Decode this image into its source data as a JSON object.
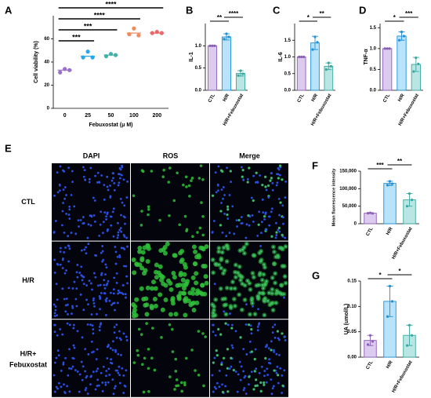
{
  "chart_data": [
    {
      "type": "dot",
      "panel": "A",
      "ylabel": "Cell viability (%)",
      "xlabel": "Febuxostat (μ M)",
      "categories": [
        "0",
        "25",
        "50",
        "100",
        "200"
      ],
      "colors": [
        "#9a6fc9",
        "#2aa7e8",
        "#3fb3ab",
        "#f08a5d",
        "#e86b6b"
      ],
      "values": [
        33,
        45,
        46,
        65,
        65
      ],
      "points": [
        [
          31,
          34,
          33
        ],
        [
          44,
          49,
          44
        ],
        [
          45,
          47,
          46
        ],
        [
          64,
          69,
          63
        ],
        [
          65,
          66,
          65
        ]
      ],
      "ylim": [
        0,
        80
      ],
      "yticks": [
        0,
        20,
        40,
        60
      ],
      "annotations": [
        {
          "label": "****",
          "from": 0,
          "to": 4
        },
        {
          "label": "****",
          "from": 0,
          "to": 3
        },
        {
          "label": "***",
          "from": 0,
          "to": 2
        },
        {
          "label": "***",
          "from": 0,
          "to": 1
        }
      ]
    },
    {
      "type": "bar",
      "panel": "B",
      "ylabel": "IL-1",
      "categories": [
        "CTL",
        "H/R",
        "H/R+Febuxostat"
      ],
      "colors": [
        "#dccbee",
        "#b9e3fa",
        "#b9e6e3"
      ],
      "edge_colors": [
        "#8a5fb5",
        "#1e90d8",
        "#3aa8a0"
      ],
      "values": [
        1.0,
        1.2,
        0.38
      ],
      "errors": [
        0.01,
        0.07,
        0.06
      ],
      "points": [
        [
          1.0,
          1.0,
          1.0
        ],
        [
          1.15,
          1.27,
          1.2
        ],
        [
          0.33,
          0.44,
          0.37
        ]
      ],
      "ylim": [
        0,
        1.5
      ],
      "yticks": [
        {
          "value": 0,
          "label": "0.0"
        },
        {
          "value": 0.5,
          "label": "0.5"
        },
        {
          "value": 1,
          "label": "1.0"
        }
      ],
      "annotations": [
        {
          "label": "**",
          "from": 0,
          "to": 1
        },
        {
          "label": "****",
          "from": 1,
          "to": 2
        }
      ]
    },
    {
      "type": "bar",
      "panel": "C",
      "ylabel": "IL-6",
      "categories": [
        "CTL",
        "H/R",
        "H/R+Febuxostat"
      ],
      "colors": [
        "#dccbee",
        "#b9e3fa",
        "#b9e6e3"
      ],
      "edge_colors": [
        "#8a5fb5",
        "#1e90d8",
        "#3aa8a0"
      ],
      "values": [
        1.0,
        1.42,
        0.72
      ],
      "errors": [
        0.01,
        0.2,
        0.1
      ],
      "points": [
        [
          1.0,
          1.0,
          1.0
        ],
        [
          1.22,
          1.6,
          1.44
        ],
        [
          0.62,
          0.82,
          0.72
        ]
      ],
      "ylim": [
        0,
        2
      ],
      "yticks": [
        {
          "value": 0,
          "label": "0.0"
        },
        {
          "value": 0.5,
          "label": "0.5"
        },
        {
          "value": 1,
          "label": "1.0"
        },
        {
          "value": 1.5,
          "label": "1.5"
        }
      ],
      "annotations": [
        {
          "label": "*",
          "from": 0,
          "to": 1
        },
        {
          "label": "**",
          "from": 1,
          "to": 2
        }
      ]
    },
    {
      "type": "bar",
      "panel": "D",
      "ylabel": "TNF-α",
      "categories": [
        "CTL",
        "H/R",
        "H/R+Febuxostat"
      ],
      "colors": [
        "#dccbee",
        "#b9e3fa",
        "#b9e6e3"
      ],
      "edge_colors": [
        "#8a5fb5",
        "#1e90d8",
        "#3aa8a0"
      ],
      "values": [
        1.0,
        1.3,
        0.62
      ],
      "errors": [
        0.01,
        0.1,
        0.17
      ],
      "points": [
        [
          1.0,
          1.0,
          1.0
        ],
        [
          1.2,
          1.4,
          1.3
        ],
        [
          0.45,
          0.78,
          0.63
        ]
      ],
      "ylim": [
        0,
        1.6
      ],
      "yticks": [
        {
          "value": 0,
          "label": "0.0"
        },
        {
          "value": 0.5,
          "label": "0.5"
        },
        {
          "value": 1,
          "label": "1.0"
        },
        {
          "value": 1.5,
          "label": "1.5"
        }
      ],
      "annotations": [
        {
          "label": "*",
          "from": 0,
          "to": 1
        },
        {
          "label": "***",
          "from": 1,
          "to": 2
        }
      ]
    },
    {
      "type": "bar",
      "panel": "F",
      "ylabel": "Mean fluorescence intensity",
      "categories": [
        "CTL",
        "H/R",
        "H/R+Febuxostat"
      ],
      "colors": [
        "#dccbee",
        "#b9e3fa",
        "#b9e6e3"
      ],
      "edge_colors": [
        "#8a5fb5",
        "#1e90d8",
        "#3aa8a0"
      ],
      "values": [
        30000,
        115000,
        68000
      ],
      "errors": [
        1000,
        6000,
        18000
      ],
      "points": [
        [
          30000,
          31000,
          29500
        ],
        [
          110000,
          121000,
          114000
        ],
        [
          50000,
          86000,
          68000
        ]
      ],
      "ylim": [
        0,
        150000
      ],
      "yticks": [
        0,
        {
          "value": 50000,
          "label": "50,000"
        },
        {
          "value": 100000,
          "label": "100,000"
        },
        {
          "value": 150000,
          "label": "150,000"
        }
      ],
      "annotations": [
        {
          "label": "***",
          "from": 0,
          "to": 1
        },
        {
          "label": "**",
          "from": 1,
          "to": 2
        }
      ]
    },
    {
      "type": "bar",
      "panel": "G",
      "ylabel": "UA (umol/L)",
      "categories": [
        "CTL",
        "H/R",
        "H/R+Febuxostat"
      ],
      "colors": [
        "#dccbee",
        "#b9e3fa",
        "#b9e6e3"
      ],
      "edge_colors": [
        "#8a5fb5",
        "#1e90d8",
        "#3aa8a0"
      ],
      "values": [
        0.033,
        0.11,
        0.043
      ],
      "errors": [
        0.01,
        0.03,
        0.02
      ],
      "points": [
        [
          0.025,
          0.043,
          0.031
        ],
        [
          0.08,
          0.14,
          0.11
        ],
        [
          0.023,
          0.063,
          0.043
        ]
      ],
      "ylim": [
        0,
        0.15
      ],
      "yticks": [
        {
          "value": 0,
          "label": "0.00"
        },
        {
          "value": 0.05,
          "label": "0.05"
        },
        {
          "value": 0.1,
          "label": "0.10"
        },
        {
          "value": 0.15,
          "label": "0.15"
        }
      ],
      "annotations": [
        {
          "label": "*",
          "from": 0,
          "to": 1
        },
        {
          "label": "*",
          "from": 1,
          "to": 2
        }
      ]
    }
  ],
  "image_grid": {
    "panel": "E",
    "columns": [
      "DAPI",
      "ROS",
      "Merge"
    ],
    "rows": [
      "CTL",
      "H/R",
      [
        "H/R+",
        "Febuxostat"
      ]
    ]
  }
}
